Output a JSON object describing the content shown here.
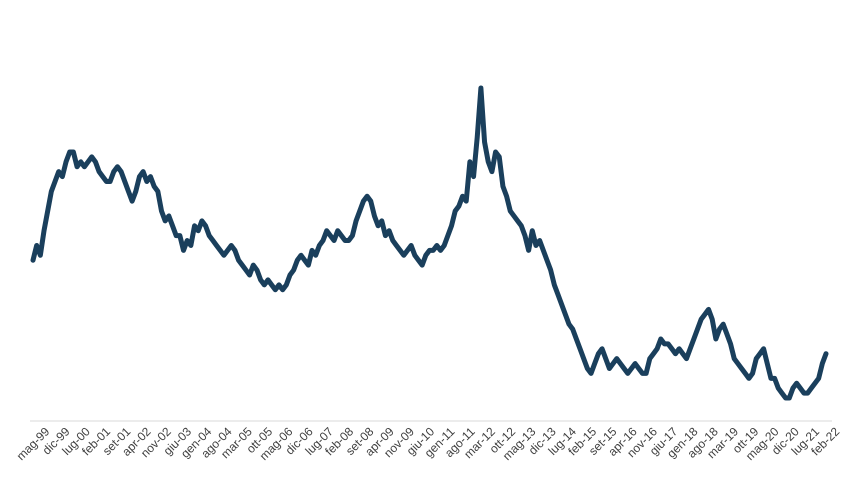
{
  "chart_data": {
    "type": "line",
    "title": "",
    "xlabel": "",
    "ylabel": "",
    "grid": false,
    "legend": "none",
    "colors": {
      "line": "#1a3f5c",
      "axis": "#d9d9d9",
      "tick_text": "#404040"
    },
    "tick_labels": [
      "mag-99",
      "dic-99",
      "lug-00",
      "feb-01",
      "set-01",
      "apr-02",
      "nov-02",
      "giu-03",
      "gen-04",
      "ago-04",
      "mar-05",
      "ott-05",
      "mag-06",
      "dic-06",
      "lug-07",
      "feb-08",
      "set-08",
      "apr-09",
      "nov-09",
      "giu-10",
      "gen-11",
      "ago-11",
      "mar-12",
      "ott-12",
      "mag-13",
      "dic-13",
      "lug-14",
      "feb-15",
      "set-15",
      "apr-16",
      "nov-16",
      "giu-17",
      "gen-18",
      "ago-18",
      "mar-19",
      "ott-19",
      "mag-20",
      "dic-20",
      "lug-21",
      "feb-22"
    ],
    "ylim": [
      0,
      100
    ],
    "series": [
      {
        "values": [
          50,
          53,
          51,
          56,
          60,
          64,
          66,
          68,
          67,
          70,
          72,
          72,
          69,
          70,
          69,
          70,
          71,
          70,
          68,
          67,
          66,
          66,
          68,
          69,
          68,
          66,
          64,
          62,
          64,
          67,
          68,
          66,
          67,
          65,
          64,
          60,
          58,
          59,
          57,
          55,
          55,
          52,
          54,
          53,
          57,
          56,
          58,
          57,
          55,
          54,
          53,
          52,
          51,
          52,
          53,
          52,
          50,
          49,
          48,
          47,
          49,
          48,
          46,
          45,
          46,
          45,
          44,
          45,
          44,
          45,
          47,
          48,
          50,
          51,
          50,
          49,
          52,
          51,
          53,
          54,
          56,
          55,
          54,
          56,
          55,
          54,
          54,
          55,
          58,
          60,
          62,
          63,
          62,
          59,
          57,
          58,
          55,
          56,
          54,
          53,
          52,
          51,
          52,
          53,
          51,
          50,
          49,
          51,
          52,
          52,
          53,
          52,
          53,
          55,
          57,
          60,
          61,
          63,
          62,
          70,
          67,
          75,
          85,
          74,
          70,
          68,
          72,
          71,
          65,
          63,
          60,
          59,
          58,
          57,
          55,
          52,
          56,
          53,
          54,
          52,
          50,
          48,
          45,
          43,
          41,
          39,
          37,
          36,
          34,
          32,
          30,
          28,
          27,
          29,
          31,
          32,
          30,
          28,
          29,
          30,
          29,
          28,
          27,
          28,
          29,
          28,
          27,
          27,
          30,
          31,
          32,
          34,
          33,
          33,
          32,
          31,
          32,
          31,
          30,
          32,
          34,
          36,
          38,
          39,
          40,
          38,
          34,
          36,
          37,
          35,
          33,
          30,
          29,
          28,
          27,
          26,
          27,
          30,
          31,
          32,
          29,
          26,
          26,
          24,
          23,
          22,
          22,
          24,
          25,
          24,
          23,
          23,
          24,
          25,
          26,
          29,
          31
        ],
        "color": "#1a3f5c"
      }
    ]
  }
}
